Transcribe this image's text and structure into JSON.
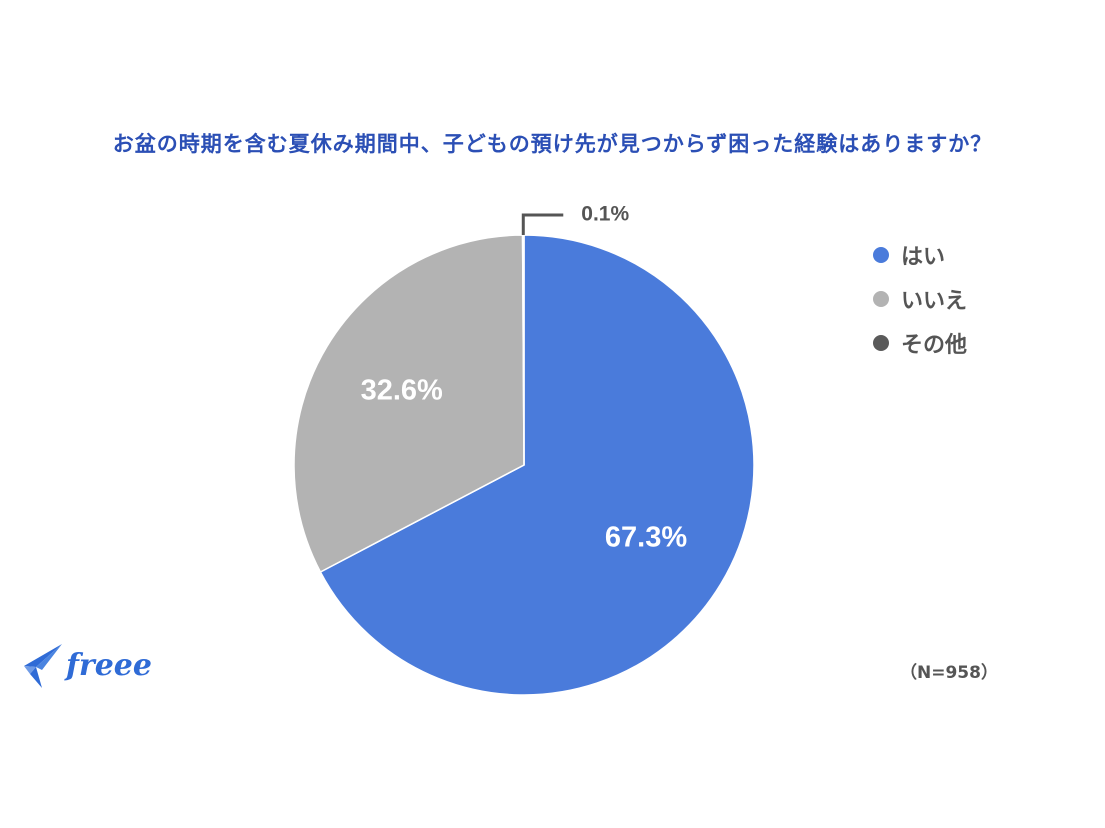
{
  "title": "お盆の時期を含む夏休み期間中、子どもの預け先が見つからず困った経験はありますか？",
  "sample_size": "（N=958）",
  "logo_text": "freee",
  "chart_data": {
    "type": "pie",
    "title": "お盆の時期を含む夏休み期間中、子どもの預け先が見つからず困った経験はありますか？",
    "slices": [
      {
        "label": "はい",
        "value": 67.3,
        "display": "67.3%",
        "color": "#4a7bdb"
      },
      {
        "label": "いいえ",
        "value": 32.6,
        "display": "32.6%",
        "color": "#b3b3b3"
      },
      {
        "label": "その他",
        "value": 0.1,
        "display": "0.1%",
        "color": "#5a5a5a"
      }
    ],
    "legend_position": "right"
  }
}
